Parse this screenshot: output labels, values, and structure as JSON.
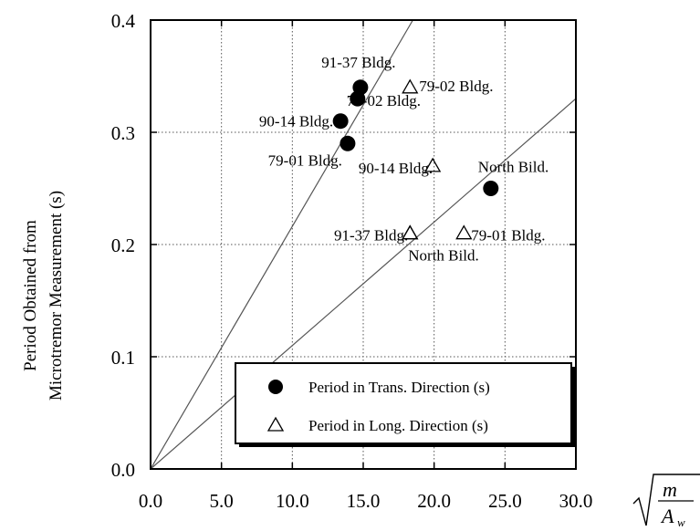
{
  "chart_data": {
    "type": "scatter",
    "ylabel_lines": [
      "Period Obtained from",
      "Microtremor Measurement (s)"
    ],
    "xlabel_formula": {
      "numerator": "m",
      "denominator": "A",
      "subscript": "w"
    },
    "xlim": [
      0,
      30
    ],
    "ylim": [
      0,
      0.4
    ],
    "xticks": [
      "0.0",
      "5.0",
      "10.0",
      "15.0",
      "20.0",
      "25.0",
      "30.0"
    ],
    "yticks": [
      "0.0",
      "0.1",
      "0.2",
      "0.3",
      "0.4"
    ],
    "grid": true,
    "legend_position": "bottom-right",
    "series": [
      {
        "name": "Period in Trans. Direction (s)",
        "marker": "filled-circle",
        "points": [
          {
            "x": 14.8,
            "y": 0.34,
            "label": "91-37 Bldg."
          },
          {
            "x": 14.6,
            "y": 0.33,
            "label": "79-02 Bldg."
          },
          {
            "x": 13.4,
            "y": 0.31,
            "label": "90-14 Bldg."
          },
          {
            "x": 13.9,
            "y": 0.29,
            "label": "79-01 Bldg."
          },
          {
            "x": 24.0,
            "y": 0.25,
            "label": "North Bild."
          }
        ]
      },
      {
        "name": "Period in Long. Direction (s)",
        "marker": "open-triangle",
        "points": [
          {
            "x": 18.3,
            "y": 0.34,
            "label": "79-02 Bldg."
          },
          {
            "x": 19.9,
            "y": 0.27,
            "label": "90-14 Bldg."
          },
          {
            "x": 18.3,
            "y": 0.21,
            "label": "91-37 Bldg."
          },
          {
            "x": 22.1,
            "y": 0.21,
            "label": "79-01 Bldg."
          },
          {
            "x": 18.3,
            "y": 0.21,
            "label": "North Bild."
          }
        ]
      }
    ],
    "reference_lines": [
      {
        "x1": 0,
        "y1": 0,
        "x2": 18.5,
        "y2": 0.4
      },
      {
        "x1": 0,
        "y1": 0,
        "x2": 30,
        "y2": 0.33
      }
    ]
  }
}
